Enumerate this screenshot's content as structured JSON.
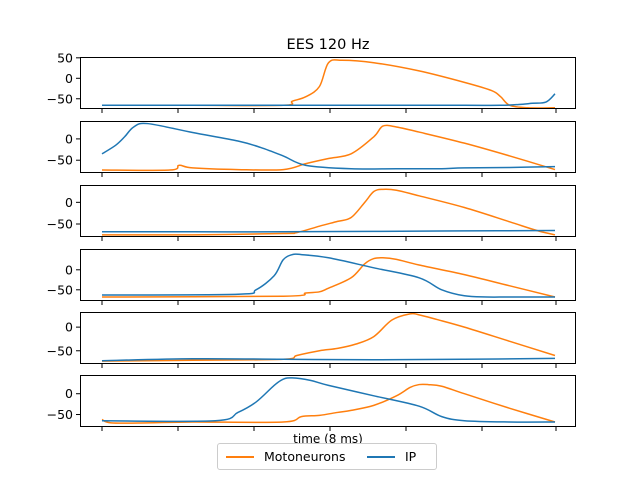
{
  "chart_data": {
    "type": "line",
    "title": "EES 120 Hz",
    "xlabel": "time (8 ms)",
    "xlim": [
      0,
      100
    ],
    "legend": {
      "placement": "bottom-center",
      "entries": [
        "Motoneurons",
        "IP"
      ]
    },
    "grid": false,
    "colors": {
      "Motoneurons": "#ff7f0e",
      "IP": "#1f77b4"
    },
    "panels": [
      {
        "ylim": [
          -75,
          52
        ],
        "yticks": [
          50,
          0,
          -50
        ],
        "ytick_labels": [
          "50",
          "0",
          "−50"
        ],
        "series": [
          {
            "name": "IP",
            "x": [
              0,
              20,
              40,
              60,
              80,
              88,
              92,
              95,
              98,
              100
            ],
            "y": [
              -66,
              -66,
              -66,
              -66,
              -66,
              -66,
              -64,
              -61,
              -58,
              -38
            ]
          },
          {
            "name": "Motoneurons",
            "x": [
              0,
              20,
              40,
              42,
              45,
              48,
              50,
              53,
              60,
              70,
              80,
              86,
              88,
              90,
              94,
              100
            ],
            "y": [
              -66,
              -66,
              -66,
              -56,
              -45,
              -20,
              38,
              44,
              38,
              18,
              -10,
              -30,
              -45,
              -66,
              -72,
              -72
            ]
          }
        ]
      },
      {
        "ylim": [
          -80,
          42
        ],
        "yticks": [
          0,
          -50
        ],
        "ytick_labels": [
          "0",
          "−50"
        ],
        "series": [
          {
            "name": "IP",
            "x": [
              0,
              3,
              5,
              7,
              10,
              20,
              30,
              35,
              40,
              45,
              55,
              65,
              70,
              75,
              80,
              90,
              100
            ],
            "y": [
              -35,
              -15,
              5,
              28,
              36,
              15,
              -5,
              -20,
              -40,
              -62,
              -70,
              -70,
              -70,
              -70,
              -68,
              -67,
              -65
            ]
          },
          {
            "name": "Motoneurons",
            "x": [
              0,
              15,
              17,
              20,
              30,
              40,
              45,
              50,
              55,
              60,
              62,
              65,
              70,
              80,
              90,
              100
            ],
            "y": [
              -73,
              -73,
              -62,
              -68,
              -72,
              -72,
              -58,
              -46,
              -35,
              5,
              30,
              28,
              16,
              -10,
              -40,
              -72
            ]
          }
        ]
      },
      {
        "ylim": [
          -80,
          40
        ],
        "yticks": [
          0,
          -50
        ],
        "ytick_labels": [
          "0",
          "−50"
        ],
        "series": [
          {
            "name": "IP",
            "x": [
              0,
              20,
              40,
              60,
              80,
              100
            ],
            "y": [
              -68,
              -68,
              -68,
              -67,
              -66,
              -65
            ]
          },
          {
            "name": "Motoneurons",
            "x": [
              0,
              20,
              40,
              43,
              48,
              52,
              55,
              58,
              60,
              62,
              65,
              70,
              80,
              90,
              96,
              100
            ],
            "y": [
              -75,
              -75,
              -72,
              -70,
              -55,
              -44,
              -35,
              0,
              25,
              30,
              28,
              15,
              -12,
              -45,
              -65,
              -75
            ]
          }
        ]
      },
      {
        "ylim": [
          -78,
          52
        ],
        "yticks": [
          0,
          -50
        ],
        "ytick_labels": [
          "0",
          "−50"
        ],
        "series": [
          {
            "name": "IP",
            "x": [
              0,
              30,
              34,
              38,
              40,
              42,
              44,
              50,
              60,
              70,
              75,
              80,
              85,
              90,
              100
            ],
            "y": [
              -63,
              -61,
              -50,
              -15,
              25,
              38,
              38,
              30,
              5,
              -20,
              -50,
              -65,
              -68,
              -68,
              -68
            ]
          },
          {
            "name": "Motoneurons",
            "x": [
              0,
              40,
              45,
              48,
              50,
              55,
              58,
              60,
              62,
              65,
              70,
              80,
              90,
              100
            ],
            "y": [
              -68,
              -66,
              -58,
              -55,
              -46,
              -20,
              15,
              28,
              30,
              26,
              12,
              -12,
              -40,
              -68
            ]
          }
        ]
      },
      {
        "ylim": [
          -78,
          32
        ],
        "yticks": [
          0,
          -50
        ],
        "ytick_labels": [
          "0",
          "−50"
        ],
        "series": [
          {
            "name": "IP",
            "x": [
              0,
              20,
              40,
              60,
              80,
              100
            ],
            "y": [
              -71,
              -67,
              -68,
              -69,
              -68,
              -66
            ]
          },
          {
            "name": "Motoneurons",
            "x": [
              0,
              20,
              40,
              43,
              48,
              52,
              56,
              60,
              64,
              68,
              70,
              74,
              80,
              90,
              100
            ],
            "y": [
              -72,
              -70,
              -68,
              -60,
              -50,
              -45,
              -36,
              -20,
              15,
              28,
              26,
              16,
              0,
              -30,
              -60
            ]
          }
        ]
      },
      {
        "ylim": [
          -80,
          45
        ],
        "yticks": [
          0,
          -50
        ],
        "ytick_labels": [
          "0",
          "−50"
        ],
        "series": [
          {
            "name": "IP",
            "x": [
              0,
              25,
              30,
              34,
              38,
              40,
              42,
              46,
              50,
              60,
              70,
              75,
              80,
              90,
              100
            ],
            "y": [
              -65,
              -65,
              -45,
              -20,
              20,
              35,
              38,
              32,
              20,
              -5,
              -30,
              -55,
              -65,
              -68,
              -68
            ]
          },
          {
            "name": "Motoneurons",
            "x": [
              0,
              2,
              10,
              20,
              40,
              44,
              48,
              52,
              55,
              60,
              65,
              68,
              70,
              72,
              75,
              80,
              90,
              100
            ],
            "y": [
              -62,
              -70,
              -70,
              -68,
              -68,
              -55,
              -52,
              -45,
              -40,
              -28,
              -5,
              15,
              22,
              22,
              18,
              0,
              -35,
              -68
            ]
          }
        ]
      }
    ]
  }
}
